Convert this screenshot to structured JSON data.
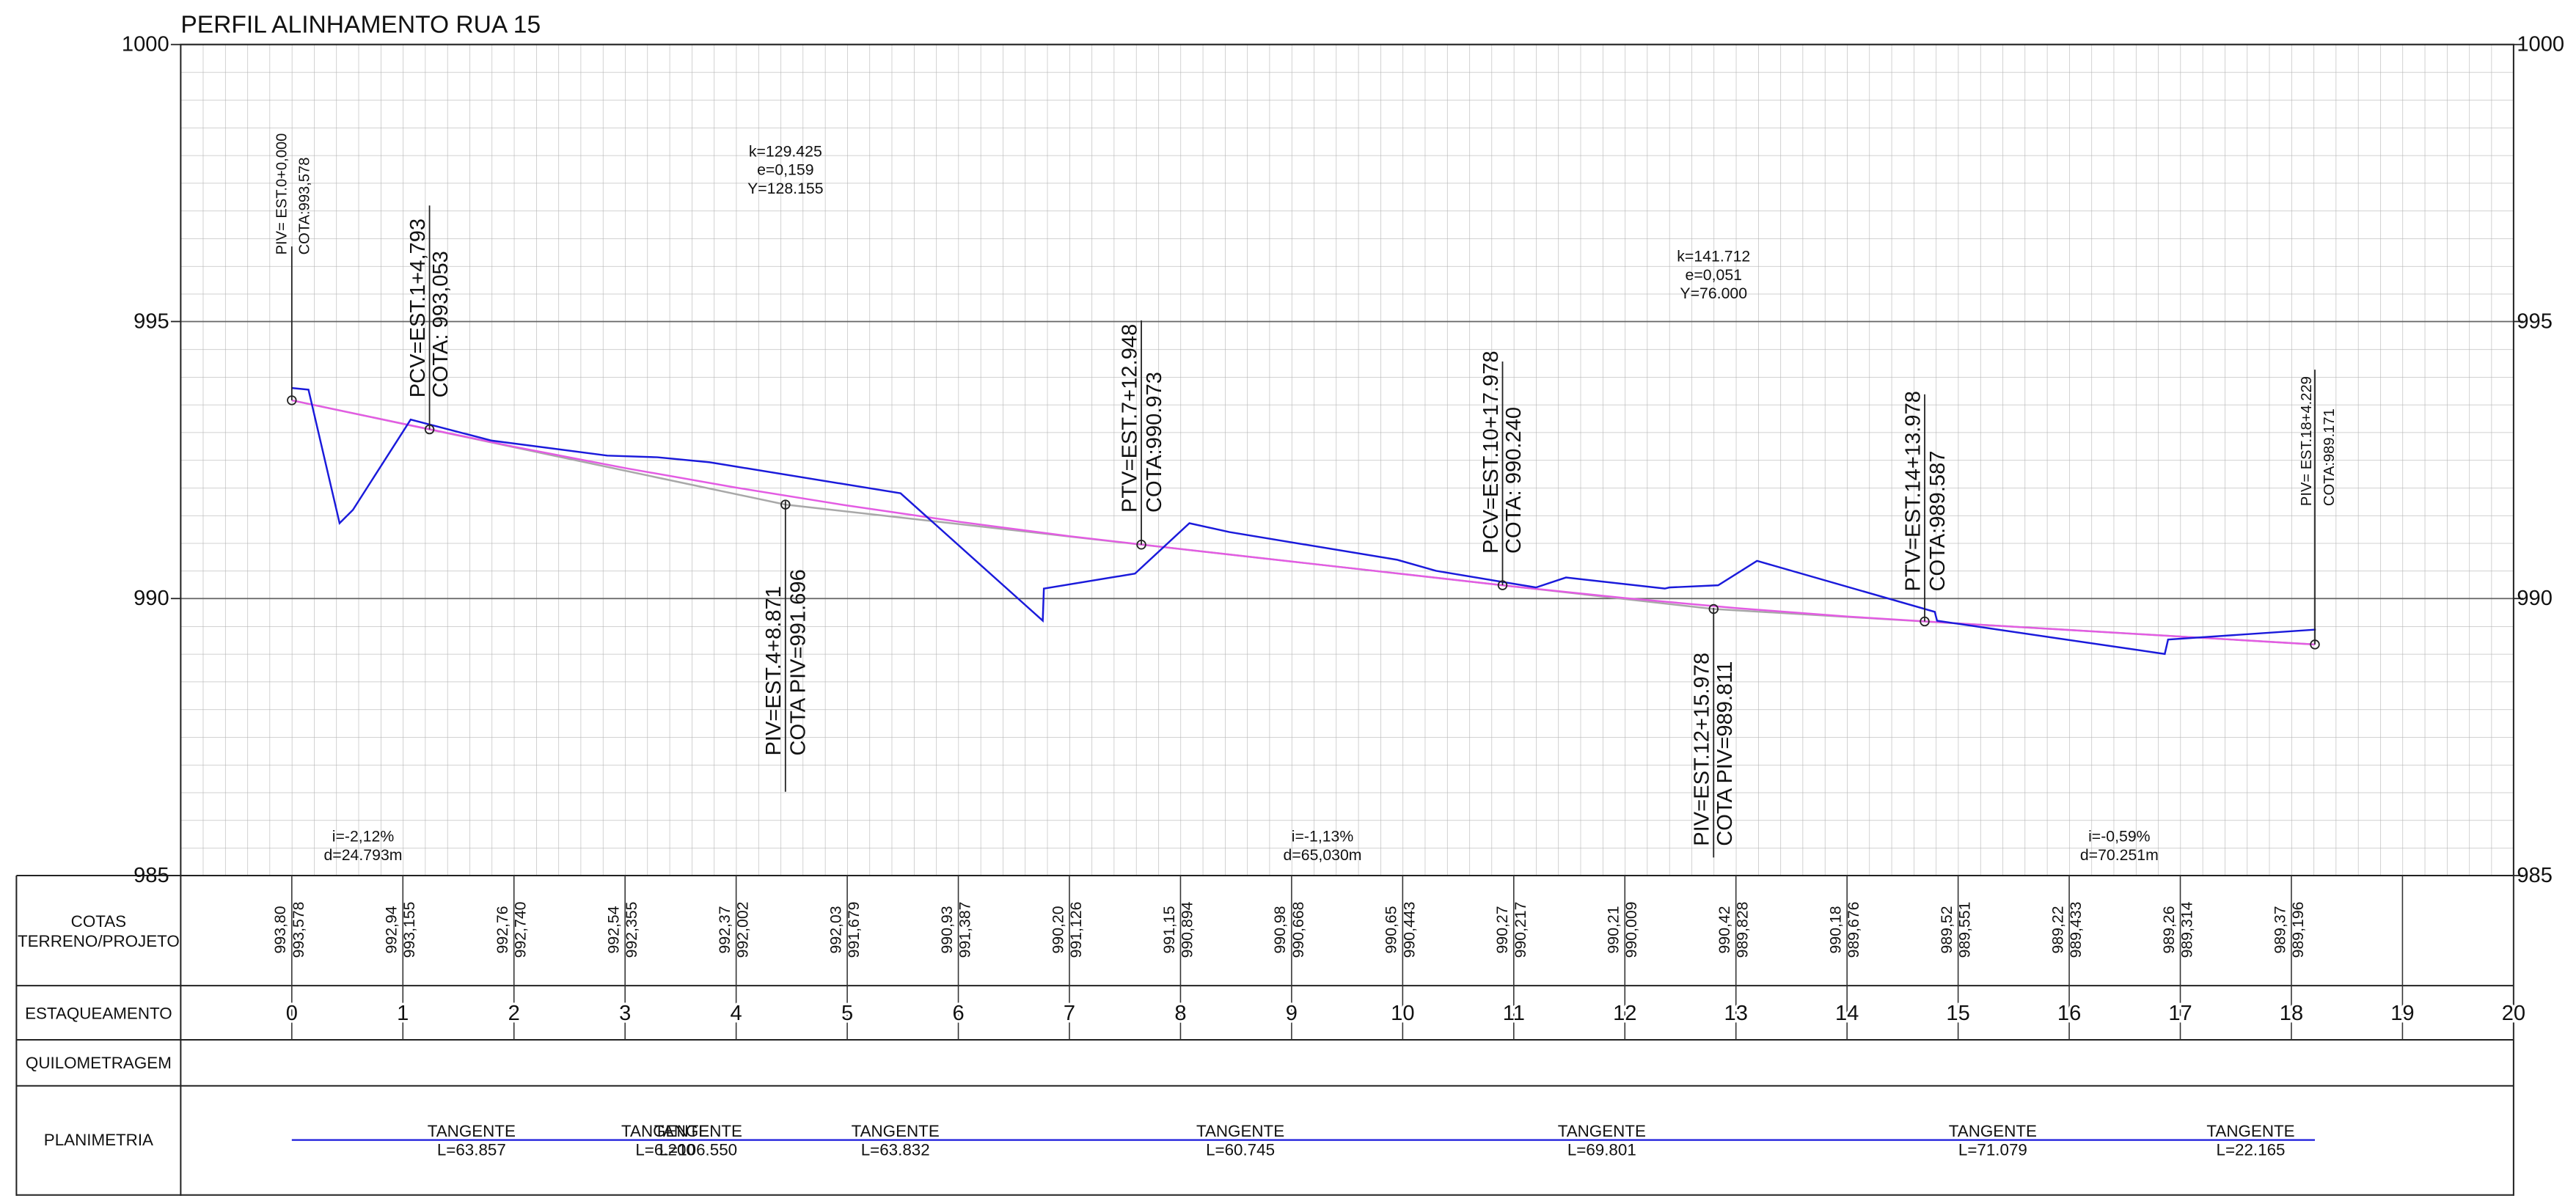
{
  "chart_data": {
    "type": "line",
    "title": "PERFIL ALINHAMENTO RUA 15",
    "xlim": [
      -1,
      20
    ],
    "xticks": [
      0,
      1,
      2,
      3,
      4,
      5,
      6,
      7,
      8,
      9,
      10,
      11,
      12,
      13,
      14,
      15,
      16,
      17,
      18,
      19,
      20
    ],
    "ylim": [
      985,
      1000
    ],
    "yticks": [
      985,
      990,
      995,
      1000
    ],
    "grid": true,
    "series": [
      {
        "color": "#a8a8a8",
        "x": [
          0,
          4.4436,
          12.7989,
          18.2115
        ],
        "values": [
          993.578,
          991.696,
          989.811,
          989.171
        ]
      },
      {
        "color": "#e35ce3",
        "x": [
          0,
          1,
          2,
          3,
          4,
          5,
          6,
          7,
          8,
          9,
          10,
          11,
          12,
          13,
          14,
          15,
          16,
          17,
          18,
          18.2115
        ],
        "values": [
          993.578,
          993.155,
          992.74,
          992.355,
          992.002,
          991.679,
          991.387,
          991.126,
          990.894,
          990.668,
          990.443,
          990.217,
          990.009,
          989.828,
          989.676,
          989.551,
          989.433,
          989.314,
          989.196,
          989.171
        ]
      },
      {
        "color": "#1a1adb",
        "x": [
          0,
          0.15,
          0.43,
          0.55,
          1.07,
          1.8,
          2.84,
          3.29,
          3.76,
          5.48,
          6.76,
          6.77,
          7.59,
          8.08,
          8.44,
          9.95,
          10.3,
          11.2,
          11.47,
          12.36,
          12.4,
          12.84,
          13.19,
          14.79,
          14.81,
          16.86,
          16.89,
          18.22
        ],
        "values": [
          993.8,
          993.77,
          991.36,
          991.6,
          993.23,
          992.85,
          992.58,
          992.55,
          992.46,
          991.9,
          989.6,
          990.18,
          990.45,
          991.36,
          991.2,
          990.7,
          990.5,
          990.2,
          990.38,
          990.18,
          990.2,
          990.24,
          990.68,
          989.76,
          989.6,
          989.0,
          989.26,
          989.44
        ]
      }
    ],
    "annotations": [
      {
        "x": 0,
        "y": 993.578,
        "lines": [
          "PIV= EST.0+0,000",
          "COTA:993,578"
        ]
      },
      {
        "x": 1.23965,
        "y": 993.053,
        "lines": [
          "PCV=EST.1+4,793",
          "COTA: 993,053"
        ]
      },
      {
        "x": 4.4436,
        "y": 991.696,
        "lines": [
          "PIV=EST.4+8.871",
          "COTA PIV=991.696"
        ]
      },
      {
        "x": 7.6474,
        "y": 990.973,
        "lines": [
          "PTV=EST.7+12.948",
          "COTA:990.973"
        ]
      },
      {
        "x": 10.8989,
        "y": 990.24,
        "lines": [
          "PCV=EST.10+17.978",
          "COTA: 990.240"
        ]
      },
      {
        "x": 12.7989,
        "y": 989.811,
        "lines": [
          "PIV=EST.12+15.978",
          "COTA PIV=989.811"
        ]
      },
      {
        "x": 14.6989,
        "y": 989.587,
        "lines": [
          "PTV=EST.14+13.978",
          "COTA:989.587"
        ]
      },
      {
        "x": 18.2115,
        "y": 989.171,
        "lines": [
          "PIV= EST.18+4.229",
          "COTA:989.171"
        ]
      }
    ],
    "curves": [
      {
        "lines": [
          "k=129.425",
          "e=0,159",
          "Y=128.155"
        ]
      },
      {
        "lines": [
          "k=141.712",
          "e=0,051",
          "Y=76.000"
        ]
      }
    ],
    "slopes": [
      {
        "lines": [
          "i=-2,12%",
          "d=24.793m"
        ]
      },
      {
        "lines": [
          "i=-1,13%",
          "d=65,030m"
        ]
      },
      {
        "lines": [
          "i=-0,59%",
          "d=70.251m"
        ]
      }
    ],
    "table": {
      "row_labels": [
        "COTAS",
        "TERRENO/PROJETO",
        "ESTAQUEAMENTO",
        "QUILOMETRAGEM",
        "PLANIMETRIA"
      ],
      "stations": [
        0,
        1,
        2,
        3,
        4,
        5,
        6,
        7,
        8,
        9,
        10,
        11,
        12,
        13,
        14,
        15,
        16,
        17,
        18
      ],
      "terrain": [
        993.8,
        992.94,
        992.76,
        992.54,
        992.37,
        992.03,
        990.93,
        990.2,
        991.15,
        990.98,
        990.65,
        990.27,
        990.21,
        990.42,
        990.18,
        989.52,
        989.22,
        989.26,
        989.37
      ],
      "terrain_labels": [
        "993,80",
        "992,94",
        "992,76",
        "992,54",
        "992,37",
        "992,03",
        "990,93",
        "990,20",
        "991,15",
        "990,98",
        "990,65",
        "990,27",
        "990,21",
        "990,42",
        "990,18",
        "989,52",
        "989,22",
        "989,26",
        "989,37"
      ],
      "project": [
        993.578,
        993.155,
        992.74,
        992.355,
        992.002,
        991.679,
        991.387,
        991.126,
        990.894,
        990.668,
        990.443,
        990.217,
        990.009,
        989.828,
        989.676,
        989.551,
        989.433,
        989.314,
        989.196
      ],
      "project_labels": [
        "993,578",
        "993,155",
        "992,740",
        "992,355",
        "992,002",
        "991,679",
        "991,387",
        "991,126",
        "990,894",
        "990,668",
        "990,443",
        "990,217",
        "990,009",
        "989,828",
        "989,676",
        "989,551",
        "989,433",
        "989,314",
        "989,196"
      ]
    },
    "planimetry": [
      {
        "name": "TANGENTE",
        "length": "L=63.857"
      },
      {
        "name": "TANGENTE",
        "length": "L=6.200"
      },
      {
        "name": "TANGENTE",
        "length": "L=106.550"
      },
      {
        "name": "TANGENTE",
        "length": "L=63.832"
      },
      {
        "name": "TANGENTE",
        "length": "L=60.745"
      },
      {
        "name": "TANGENTE",
        "length": "L=69.801"
      },
      {
        "name": "TANGENTE",
        "length": "L=71.079"
      },
      {
        "name": "TANGENTE",
        "length": "L=22.165"
      }
    ]
  }
}
